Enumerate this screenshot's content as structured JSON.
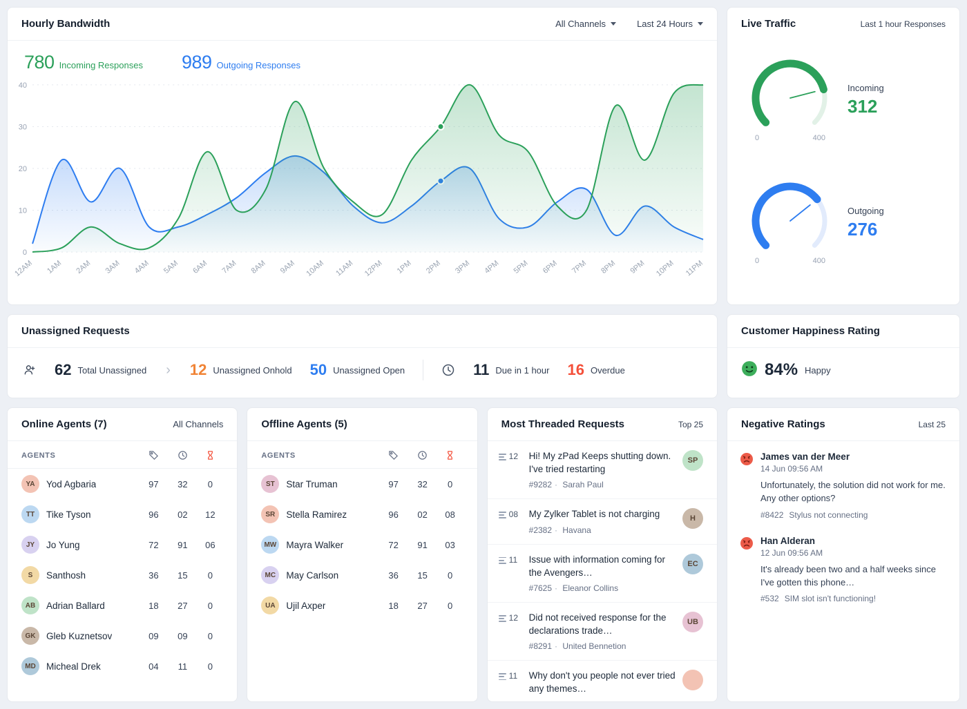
{
  "colors": {
    "green": "#2ba05a",
    "blue": "#2e7df0",
    "orange": "#f08436",
    "red": "#f4503a"
  },
  "hourly_bandwidth": {
    "title": "Hourly Bandwidth",
    "channels_filter": "All Channels",
    "time_filter": "Last 24 Hours",
    "incoming_value": "780",
    "incoming_label": "Incoming Responses",
    "outgoing_value": "989",
    "outgoing_label": "Outgoing Responses"
  },
  "chart_data": [
    {
      "type": "area",
      "title": "Hourly Bandwidth",
      "x": [
        "12AM",
        "1AM",
        "2AM",
        "3AM",
        "4AM",
        "5AM",
        "6AM",
        "7AM",
        "8AM",
        "9AM",
        "10AM",
        "11AM",
        "12PM",
        "1PM",
        "2PM",
        "3PM",
        "4PM",
        "5PM",
        "6PM",
        "7PM",
        "8PM",
        "9PM",
        "10PM",
        "11PM"
      ],
      "series": [
        {
          "name": "Outgoing Responses",
          "color": "#2e7df0",
          "track": "#dfeafd",
          "values": [
            2,
            22,
            12,
            20,
            6,
            6,
            9,
            13,
            19,
            23,
            19,
            11,
            7,
            11,
            17,
            20,
            8,
            6,
            12,
            15,
            4,
            11,
            6,
            3
          ]
        },
        {
          "name": "Incoming Responses",
          "color": "#2ba05a",
          "track": "#dff3e6",
          "values": [
            0,
            1,
            6,
            2,
            1,
            8,
            24,
            10,
            15,
            36,
            20,
            12,
            9,
            22,
            30,
            40,
            28,
            24,
            11,
            10,
            35,
            22,
            38,
            40
          ]
        }
      ],
      "xlabel": "",
      "ylabel": "",
      "ylim": [
        0,
        40
      ],
      "yticks": [
        0,
        10,
        20,
        30,
        40
      ],
      "grid": true,
      "highlight_x": "2PM",
      "legend_position": "top-left-values"
    },
    {
      "type": "gauge",
      "label": "Incoming",
      "value": 312,
      "min": 0,
      "max": 400,
      "color": "#2ba05a",
      "track": "#e2f1e7"
    },
    {
      "type": "gauge",
      "label": "Outgoing",
      "value": 276,
      "min": 0,
      "max": 400,
      "color": "#2e7df0",
      "track": "#e2ebfc"
    }
  ],
  "live_traffic": {
    "title": "Live Traffic",
    "subtitle": "Last 1 hour Responses",
    "incoming_label": "Incoming",
    "incoming_value": "312",
    "incoming_min": "0",
    "incoming_max": "400",
    "outgoing_label": "Outgoing",
    "outgoing_value": "276",
    "outgoing_min": "0",
    "outgoing_max": "400"
  },
  "unassigned": {
    "title": "Unassigned Requests",
    "total_value": "62",
    "total_label": "Total Unassigned",
    "onhold_value": "12",
    "onhold_label": "Unassigned Onhold",
    "open_value": "50",
    "open_label": "Unassigned Open",
    "due_value": "11",
    "due_label": "Due in 1 hour",
    "overdue_value": "16",
    "overdue_label": "Overdue"
  },
  "happiness": {
    "title": "Customer Happiness Rating",
    "value": "84%",
    "label": "Happy"
  },
  "online_agents": {
    "title": "Online Agents (7)",
    "filter": "All Channels",
    "col_header": "AGENTS",
    "rows": [
      {
        "name": "Yod Agbaria",
        "c1": "97",
        "c2": "32",
        "c3": "0"
      },
      {
        "name": "Tike Tyson",
        "c1": "96",
        "c2": "02",
        "c3": "12"
      },
      {
        "name": "Jo Yung",
        "c1": "72",
        "c2": "91",
        "c3": "06"
      },
      {
        "name": "Santhosh",
        "c1": "36",
        "c2": "15",
        "c3": "0"
      },
      {
        "name": "Adrian Ballard",
        "c1": "18",
        "c2": "27",
        "c3": "0"
      },
      {
        "name": "Gleb Kuznetsov",
        "c1": "09",
        "c2": "09",
        "c3": "0"
      },
      {
        "name": "Micheal Drek",
        "c1": "04",
        "c2": "11",
        "c3": "0"
      }
    ]
  },
  "offline_agents": {
    "title": "Offline Agents (5)",
    "col_header": "AGENTS",
    "rows": [
      {
        "name": "Star Truman",
        "c1": "97",
        "c2": "32",
        "c3": "0"
      },
      {
        "name": "Stella Ramirez",
        "c1": "96",
        "c2": "02",
        "c3": "08"
      },
      {
        "name": "Mayra Walker",
        "c1": "72",
        "c2": "91",
        "c3": "03"
      },
      {
        "name": "May Carlson",
        "c1": "36",
        "c2": "15",
        "c3": "0"
      },
      {
        "name": "Ujil Axper",
        "c1": "18",
        "c2": "27",
        "c3": "0"
      }
    ]
  },
  "threaded": {
    "title": "Most Threaded Requests",
    "badge": "Top 25",
    "items": [
      {
        "count": "12",
        "title": "Hi! My zPad Keeps shutting down. I've tried restarting",
        "ticket": "#9282",
        "contact": "Sarah Paul"
      },
      {
        "count": "08",
        "title": "My Zylker Tablet is not charging",
        "ticket": "#2382",
        "contact": "Havana"
      },
      {
        "count": "11",
        "title": "Issue with information coming for the Avengers…",
        "ticket": "#7625",
        "contact": "Eleanor Collins"
      },
      {
        "count": "12",
        "title": "Did not received response for the declarations trade…",
        "ticket": "#8291",
        "contact": "United Bennetion"
      },
      {
        "count": "11",
        "title": "Why don't you people not ever tried any themes…",
        "ticket": "",
        "contact": ""
      }
    ]
  },
  "negative": {
    "title": "Negative Ratings",
    "badge": "Last 25",
    "items": [
      {
        "name": "James van der Meer",
        "time": "14 Jun 09:56 AM",
        "text": "Unfortunately, the solution did not work for me. Any other options?",
        "ticket": "#8422",
        "subject": "Stylus not connecting"
      },
      {
        "name": "Han Alderan",
        "time": "12 Jun 09:56 AM",
        "text": "It's already been two and a half weeks since I've gotten this phone…",
        "ticket": "#532",
        "subject": "SIM slot isn't functioning!"
      }
    ]
  }
}
